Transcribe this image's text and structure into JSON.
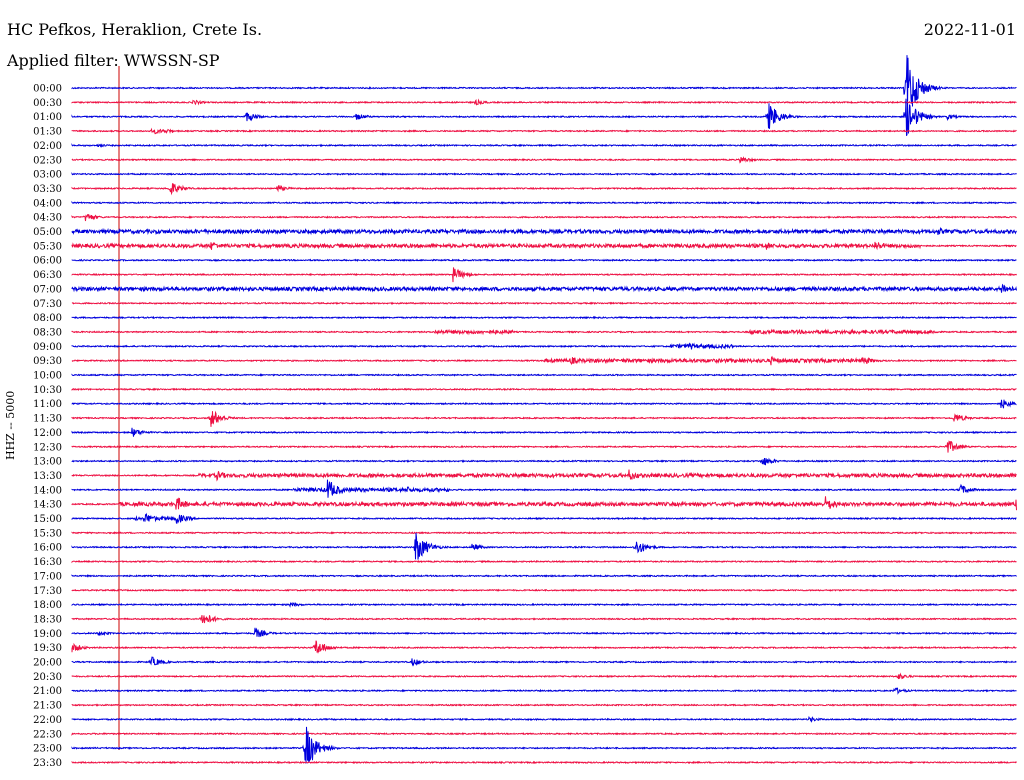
{
  "header": {
    "station": "HC Pefkos, Heraklion, Crete Is.",
    "date": "2022-11-01",
    "filter": "Applied filter: WWSSN-SP",
    "channel": "HHZ -- 5000"
  },
  "chart_data": {
    "type": "line",
    "title": "HC Pefkos, Heraklion, Crete Is.",
    "ylabel": "HHZ -- 5000",
    "colors": [
      "#0000dd",
      "#ee1144"
    ],
    "marker_color": "#cc0000",
    "rows": [
      "00:00",
      "00:30",
      "01:00",
      "01:30",
      "02:00",
      "02:30",
      "03:00",
      "03:30",
      "04:00",
      "04:30",
      "05:00",
      "05:30",
      "06:00",
      "06:30",
      "07:00",
      "07:30",
      "08:00",
      "08:30",
      "09:00",
      "09:30",
      "10:00",
      "10:30",
      "11:00",
      "11:30",
      "12:00",
      "12:30",
      "13:00",
      "13:30",
      "14:00",
      "14:30",
      "15:00",
      "15:30",
      "16:00",
      "16:30",
      "17:00",
      "17:30",
      "18:00",
      "18:30",
      "19:00",
      "19:30",
      "20:00",
      "20:30",
      "21:00",
      "21:30",
      "22:00",
      "22:30",
      "23:00",
      "23:30"
    ],
    "events": [
      {
        "row": 0,
        "minute": 26.5,
        "amp": 40
      },
      {
        "row": 1,
        "minute": 3.8,
        "amp": 3
      },
      {
        "row": 1,
        "minute": 12.8,
        "amp": 3
      },
      {
        "row": 2,
        "minute": 5.5,
        "amp": 6
      },
      {
        "row": 2,
        "minute": 9.0,
        "amp": 4
      },
      {
        "row": 2,
        "minute": 22.1,
        "amp": 16
      },
      {
        "row": 2,
        "minute": 26.5,
        "amp": 22
      },
      {
        "row": 2,
        "minute": 27.8,
        "amp": 3
      },
      {
        "row": 3,
        "minute": 2.6,
        "amp": 3
      },
      {
        "row": 4,
        "minute": 0.8,
        "amp": 2
      },
      {
        "row": 5,
        "minute": 21.2,
        "amp": 4
      },
      {
        "row": 7,
        "minute": 3.1,
        "amp": 8
      },
      {
        "row": 7,
        "minute": 6.5,
        "amp": 4
      },
      {
        "row": 9,
        "minute": 0.4,
        "amp": 5
      },
      {
        "row": 10,
        "minute": 27.5,
        "amp": 4
      },
      {
        "row": 11,
        "minute": 4.4,
        "amp": 5
      },
      {
        "row": 11,
        "minute": 22.0,
        "amp": 5
      },
      {
        "row": 11,
        "minute": 25.5,
        "amp": 6
      },
      {
        "row": 13,
        "minute": 12.1,
        "amp": 8
      },
      {
        "row": 14,
        "minute": 29.5,
        "amp": 7
      },
      {
        "row": 18,
        "minute": 19.6,
        "amp": 4
      },
      {
        "row": 19,
        "minute": 15.8,
        "amp": 5
      },
      {
        "row": 19,
        "minute": 22.2,
        "amp": 5
      },
      {
        "row": 19,
        "minute": 25.1,
        "amp": 5
      },
      {
        "row": 22,
        "minute": 29.5,
        "amp": 6
      },
      {
        "row": 23,
        "minute": 4.4,
        "amp": 10
      },
      {
        "row": 23,
        "minute": 28.0,
        "amp": 6
      },
      {
        "row": 24,
        "minute": 1.9,
        "amp": 5
      },
      {
        "row": 25,
        "minute": 27.8,
        "amp": 8
      },
      {
        "row": 26,
        "minute": 21.9,
        "amp": 6
      },
      {
        "row": 27,
        "minute": 4.6,
        "amp": 5
      },
      {
        "row": 27,
        "minute": 17.7,
        "amp": 6
      },
      {
        "row": 28,
        "minute": 8.1,
        "amp": 12
      },
      {
        "row": 28,
        "minute": 10.6,
        "amp": 4
      },
      {
        "row": 28,
        "minute": 28.2,
        "amp": 6
      },
      {
        "row": 29,
        "minute": 3.3,
        "amp": 8
      },
      {
        "row": 29,
        "minute": 23.9,
        "amp": 9
      },
      {
        "row": 29,
        "minute": 30.0,
        "amp": 8
      },
      {
        "row": 30,
        "minute": 2.3,
        "amp": 6
      },
      {
        "row": 30,
        "minute": 3.3,
        "amp": 6
      },
      {
        "row": 32,
        "minute": 10.9,
        "amp": 18
      },
      {
        "row": 32,
        "minute": 12.7,
        "amp": 4
      },
      {
        "row": 32,
        "minute": 17.9,
        "amp": 9
      },
      {
        "row": 36,
        "minute": 6.9,
        "amp": 3
      },
      {
        "row": 37,
        "minute": 4.1,
        "amp": 9
      },
      {
        "row": 38,
        "minute": 5.8,
        "amp": 6
      },
      {
        "row": 38,
        "minute": 0.8,
        "amp": 3
      },
      {
        "row": 39,
        "minute": 7.7,
        "amp": 10
      },
      {
        "row": 39,
        "minute": 0.0,
        "amp": 5
      },
      {
        "row": 40,
        "minute": 2.5,
        "amp": 6
      },
      {
        "row": 40,
        "minute": 10.8,
        "amp": 4
      },
      {
        "row": 41,
        "minute": 26.2,
        "amp": 4
      },
      {
        "row": 42,
        "minute": 26.1,
        "amp": 4
      },
      {
        "row": 44,
        "minute": 23.4,
        "amp": 3
      },
      {
        "row": 46,
        "minute": 7.4,
        "amp": 25
      }
    ],
    "bursts": [
      {
        "row": 3,
        "from": 2.5,
        "to": 3.2
      },
      {
        "row": 10,
        "from": 0,
        "to": 30
      },
      {
        "row": 11,
        "from": 0,
        "to": 27
      },
      {
        "row": 14,
        "from": 0,
        "to": 30
      },
      {
        "row": 17,
        "from": 11.5,
        "to": 14.0
      },
      {
        "row": 17,
        "from": 21.5,
        "to": 27.5
      },
      {
        "row": 18,
        "from": 19.0,
        "to": 21.0
      },
      {
        "row": 19,
        "from": 15.0,
        "to": 25.5
      },
      {
        "row": 27,
        "from": 4.0,
        "to": 30
      },
      {
        "row": 28,
        "from": 7.0,
        "to": 12.0
      },
      {
        "row": 29,
        "from": 1.5,
        "to": 30
      },
      {
        "row": 30,
        "from": 2.0,
        "to": 3.8
      }
    ]
  }
}
